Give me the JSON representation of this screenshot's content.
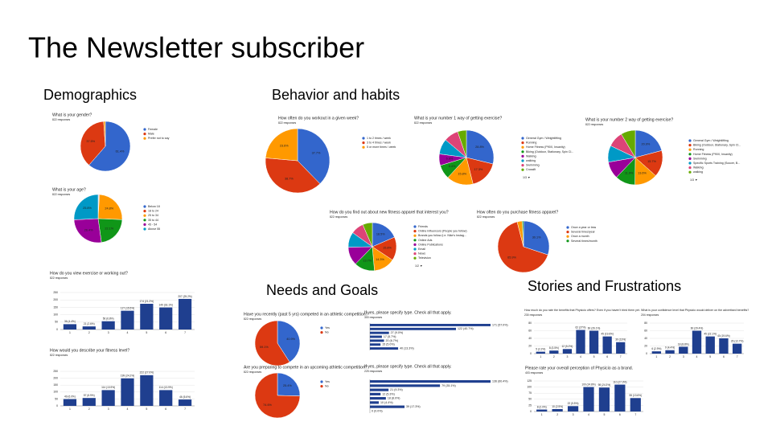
{
  "title": "The Newsletter subscriber",
  "sections": [
    "Demographics",
    "Behavior and habits",
    "Needs and Goals",
    "Stories and Frustrations"
  ],
  "chart_data": [
    {
      "type": "pie",
      "title": "What is your gender?",
      "subtitle": "822 responses",
      "categories": [
        "Female",
        "Male",
        "Prefer not to say"
      ],
      "values": [
        61.4,
        37.5,
        1.1
      ],
      "value_labels": [
        "61.4%",
        "37.5%",
        null
      ],
      "colors": [
        "#3366cc",
        "#dc3912",
        "#ff9900"
      ]
    },
    {
      "type": "pie",
      "title": "What is your age?",
      "subtitle": "822 responses",
      "categories": [
        "Below 18",
        "18 to 24",
        "25 to 34",
        "35 to 44",
        "45 - 54",
        "Above 55"
      ],
      "values": [
        0.5,
        0.4,
        24.8,
        22.1,
        26.4,
        25.8
      ],
      "value_labels": [
        null,
        null,
        "24.8%",
        "22.1%",
        "26.4%",
        "25.8%"
      ],
      "colors": [
        "#3366cc",
        "#dc3912",
        "#ff9900",
        "#109618",
        "#990099",
        "#0099c6"
      ]
    },
    {
      "type": "bar",
      "title": "How do you view exercise or working out?",
      "subtitle": "822 responses",
      "categories": [
        "1",
        "2",
        "3",
        "4",
        "5",
        "6",
        "7"
      ],
      "values": [
        36,
        21,
        56,
        127,
        174,
        149,
        207
      ],
      "value_labels": [
        "36 (4.4%)",
        "21 (2.6%)",
        "56 (6.8%)",
        "127 (15.5%)",
        "174 (21.2%)",
        "149 (18.1%)",
        "207 (25.2%)"
      ],
      "color": "#1f3f8f",
      "ylim": [
        0,
        250
      ],
      "yticks": [
        0,
        50,
        100,
        150,
        200,
        250
      ]
    },
    {
      "type": "bar",
      "title": "How would you describe your fitness level?",
      "subtitle": "822 responses",
      "categories": [
        "1",
        "2",
        "3",
        "4",
        "5",
        "6",
        "7"
      ],
      "values": [
        49,
        57,
        114,
        199,
        222,
        114,
        46
      ],
      "value_labels": [
        "49 (6.0%)",
        "57 (6.9%)",
        "114 (13.9%)",
        "199 (24.2%)",
        "222 (27.0%)",
        "114 (13.9%)",
        "46 (5.6%)"
      ],
      "color": "#1f3f8f",
      "ylim": [
        0,
        250
      ],
      "yticks": [
        0,
        50,
        100,
        150,
        200,
        250
      ]
    },
    {
      "type": "pie",
      "title": "How often do you workout in a given week?",
      "subtitle": "822 responses",
      "categories": [
        "1 to 2 times / week",
        "3 to 4 times / week",
        "5 or more times / week"
      ],
      "values": [
        37.7,
        38.7,
        23.6
      ],
      "value_labels": [
        "37.7%",
        "38.7%",
        "23.6%"
      ],
      "colors": [
        "#3366cc",
        "#dc3912",
        "#ff9900"
      ]
    },
    {
      "type": "pie",
      "title": "What is your number 1 way of getting exercise?",
      "subtitle": "822 responses",
      "categories": [
        "General Gym / Weightlifting",
        "Running",
        "Home Fitness (P90X, Insanity)",
        "Biking (Outdoor, Stationary, Spin Cl...",
        "Walking",
        "walking",
        "Swimming",
        "Crossfit"
      ],
      "values": [
        28.8,
        17.3,
        15.8,
        8.4,
        6.8,
        9.1,
        8.6,
        5.2
      ],
      "value_labels": [
        "28.8%",
        "17.3%",
        "15.8%",
        "8.4%",
        "6.8%",
        null,
        null,
        null
      ],
      "colors": [
        "#3366cc",
        "#dc3912",
        "#ff9900",
        "#109618",
        "#990099",
        "#0099c6",
        "#dd4477",
        "#66aa00"
      ],
      "pager": "1/3 ▼"
    },
    {
      "type": "pie",
      "title": "What is your number 2 way of getting exercise?",
      "subtitle": "822 responses",
      "categories": [
        "General Gym / Weightlifting",
        "Biking (Outdoor, Stationary, Spin Cl...",
        "Running",
        "Home Fitness (P90X, Insanity)",
        "Swimming",
        "Specific Sports Training (Soccer, B...",
        "Walking",
        "walking"
      ],
      "values": [
        20.9,
        15.7,
        13.6,
        11.9,
        10.2,
        9.8,
        9.3,
        8.6
      ],
      "value_labels": [
        "20.9%",
        "15.7%",
        "13.6%",
        "11.9%",
        null,
        null,
        null,
        null
      ],
      "colors": [
        "#3366cc",
        "#dc3912",
        "#ff9900",
        "#109618",
        "#990099",
        "#0099c6",
        "#dd4477",
        "#66aa00"
      ],
      "pager": "1/3 ▼"
    },
    {
      "type": "pie",
      "title": "How do you find out about new fitness apparel that interest you?",
      "subtitle": "822 responses",
      "categories": [
        "Friends",
        "Online Influencers (People you follow)",
        "Brands you follow (i.e. Nike's Instag...",
        "Online Ads",
        "Online Publications",
        "Email",
        "News",
        "Television"
      ],
      "values": [
        18.5,
        15.8,
        14.3,
        13.7,
        12.4,
        10.2,
        8.6,
        6.5
      ],
      "value_labels": [
        "18.5%",
        "15.8%",
        "14.3%",
        "13.7%",
        null,
        null,
        null,
        null
      ],
      "colors": [
        "#3366cc",
        "#dc3912",
        "#ff9900",
        "#109618",
        "#990099",
        "#0099c6",
        "#dd4477",
        "#66aa00"
      ],
      "pager": "1/2 ▼"
    },
    {
      "type": "pie",
      "title": "How often do you purchase fitness apparel?",
      "subtitle": "822 responses",
      "categories": [
        "Once a year or less",
        "Several times/year",
        "Once a month",
        "Several times/month"
      ],
      "values": [
        30.1,
        65.9,
        3.2,
        0.8
      ],
      "value_labels": [
        "30.1%",
        "65.9%",
        null,
        null
      ],
      "colors": [
        "#3366cc",
        "#dc3912",
        "#ff9900",
        "#109618"
      ]
    },
    {
      "type": "pie",
      "title": "Have you recently (past 5 yrs) competed in an athletic competition?",
      "subtitle": "822 responses",
      "categories": [
        "Yes",
        "No"
      ],
      "values": [
        40.9,
        59.1
      ],
      "value_labels": [
        "40.9%",
        "59.1%"
      ],
      "colors": [
        "#3366cc",
        "#dc3912"
      ]
    },
    {
      "type": "hbar",
      "title": "If yes, please specify type. Check all that apply.",
      "subtitle": "300 responses",
      "values": [
        171,
        122,
        27,
        17,
        20,
        15,
        40
      ],
      "value_labels": [
        "171 (57.0%)",
        "122 (40.7%)",
        "27 (9.0%)",
        "17 (5.7%)",
        "20 (6.7%)",
        "15 (5.0%)",
        "40 (13.3%)"
      ],
      "color": "#1f3f8f"
    },
    {
      "type": "pie",
      "title": "Are you preparing to compete in an upcoming athletic competition?",
      "subtitle": "822 responses",
      "categories": [
        "Yes",
        "No"
      ],
      "values": [
        25.4,
        74.6
      ],
      "value_labels": [
        "25.4%",
        "74.6%"
      ],
      "colors": [
        "#3366cc",
        "#dc3912"
      ]
    },
    {
      "type": "hbar",
      "title": "If yes, please specify type. Check all that apply.",
      "subtitle": "225 responses",
      "values": [
        136,
        79,
        21,
        12,
        18,
        10,
        39,
        0
      ],
      "value_labels": [
        "136 (60.4%)",
        "79 (35.1%)",
        "21 (9.3%)",
        "12 (5.3%)",
        "18 (8.0%)",
        "10 (4.4%)",
        "39 (17.3%)",
        "0 (0.0%)"
      ],
      "color": "#1f3f8f"
    },
    {
      "type": "bar",
      "title": "How much do you rate the benefits that Physicio offers? Even if you haven't tried them yet.",
      "subtitle": "230 responses",
      "categories": [
        "1",
        "2",
        "3",
        "4",
        "5",
        "6",
        "7"
      ],
      "values": [
        5,
        8,
        12,
        62,
        60,
        45,
        30
      ],
      "value_labels": [
        "5 (2.2%)",
        "8 (3.5%)",
        "12 (5.2%)",
        "62 (27%)",
        "60 (26.1%)",
        "45 (19.6%)",
        "30 (13%)"
      ],
      "color": "#1f3f8f",
      "ylim": [
        0,
        80
      ],
      "yticks": [
        0,
        20,
        40,
        60,
        80
      ]
    },
    {
      "type": "bar",
      "title": "What is your confidence level that Physicio would deliver on the advertised benefits?",
      "subtitle": "204 responses",
      "categories": [
        "1",
        "2",
        "3",
        "4",
        "5",
        "6",
        "7"
      ],
      "values": [
        6,
        9,
        18,
        60,
        45,
        40,
        26
      ],
      "value_labels": [
        "6 (2.9%)",
        "9 (4.4%)",
        "18 (8.8%)",
        "60 (29.4%)",
        "45 (22.1%)",
        "40 (19.6%)",
        "26 (12.7%)"
      ],
      "color": "#1f3f8f",
      "ylim": [
        0,
        80
      ],
      "yticks": [
        0,
        20,
        40,
        60,
        80
      ]
    },
    {
      "type": "bar",
      "title": "Please rate your overall perception of Physicio as a brand.",
      "subtitle": "403 responses",
      "categories": [
        "1",
        "2",
        "3",
        "4",
        "5",
        "6",
        "7"
      ],
      "values": [
        8,
        10,
        22,
        100,
        98,
        110,
        55
      ],
      "value_labels": [
        "8 (2.0%)",
        "10 (2.5%)",
        "22 (5.5%)",
        "100 (24.8%)",
        "98 (24.3%)",
        "110 (27.3%)",
        "55 (13.6%)"
      ],
      "color": "#1f3f8f",
      "ylim": [
        0,
        125
      ],
      "yticks": [
        0,
        25,
        50,
        75,
        100,
        125
      ]
    }
  ]
}
